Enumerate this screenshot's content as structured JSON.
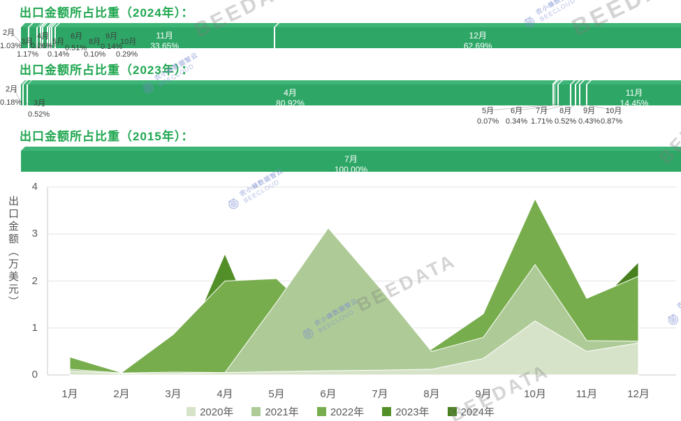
{
  "colors": {
    "bar_front": "#2ea766",
    "bar_top": "#3fb477",
    "title_green": "#1ea64f"
  },
  "watermark": {
    "beedata": "BEEDATA",
    "brand_cn": "农小蜂数据智云",
    "brand_en": "BEECLOUD"
  },
  "sections": [
    {
      "year": "2024",
      "title": "出口金额所占比重（2024年）：",
      "segments": [
        {
          "month": "2月",
          "pct": "1.03%",
          "value": 1.03,
          "inside": false
        },
        {
          "month": "3月",
          "pct": "1.17%",
          "value": 1.17,
          "inside": false
        },
        {
          "month": "4月",
          "pct": "0.26%",
          "value": 0.26,
          "inside": false
        },
        {
          "month": "5月",
          "pct": "0.14%",
          "value": 0.14,
          "inside": false
        },
        {
          "month": "6月",
          "pct": "0.51%",
          "value": 0.51,
          "inside": false
        },
        {
          "month": "8月",
          "pct": "0.10%",
          "value": 0.1,
          "inside": false
        },
        {
          "month": "9月",
          "pct": "0.14%",
          "value": 0.14,
          "inside": false
        },
        {
          "month": "10月",
          "pct": "0.29%",
          "value": 0.29,
          "inside": false
        },
        {
          "month": "11月",
          "pct": "33.65%",
          "value": 33.65,
          "inside": true
        },
        {
          "month": "12月",
          "pct": "62.69%",
          "value": 62.69,
          "inside": true
        }
      ]
    },
    {
      "year": "2023",
      "title": "出口金额所占比重（2023年）：",
      "segments": [
        {
          "month": "2月",
          "pct": "0.18%",
          "value": 0.18,
          "inside": false
        },
        {
          "month": "3月",
          "pct": "0.52%",
          "value": 0.52,
          "inside": false
        },
        {
          "month": "4月",
          "pct": "80.92%",
          "value": 80.92,
          "inside": true
        },
        {
          "month": "5月",
          "pct": "0.07%",
          "value": 0.07,
          "inside": false
        },
        {
          "month": "6月",
          "pct": "0.34%",
          "value": 0.34,
          "inside": false
        },
        {
          "month": "7月",
          "pct": "1.71%",
          "value": 1.71,
          "inside": false
        },
        {
          "month": "8月",
          "pct": "0.52%",
          "value": 0.52,
          "inside": false
        },
        {
          "month": "9月",
          "pct": "0.43%",
          "value": 0.43,
          "inside": false
        },
        {
          "month": "10月",
          "pct": "0.87%",
          "value": 0.87,
          "inside": false
        },
        {
          "month": "11月",
          "pct": "14.45%",
          "value": 14.45,
          "inside": true
        }
      ]
    },
    {
      "year": "2015",
      "title": "出口金额所占比重（2015年）：",
      "segments": [
        {
          "month": "7月",
          "pct": "100.00%",
          "value": 100,
          "inside": true
        }
      ]
    }
  ],
  "chart_data": {
    "type": "area",
    "title": "",
    "xlabel": "",
    "ylabel": "出口金额（万美元）",
    "categories": [
      "1月",
      "2月",
      "3月",
      "4月",
      "5月",
      "6月",
      "7月",
      "8月",
      "9月",
      "10月",
      "11月",
      "12月"
    ],
    "ylim": [
      0,
      4
    ],
    "yticks": [
      0,
      1,
      2,
      3,
      4
    ],
    "grid": true,
    "legend_position": "bottom",
    "series": [
      {
        "name": "2020年",
        "color": "#d7e3c9",
        "values": [
          0.08,
          0.03,
          0.03,
          0.05,
          0.07,
          0.09,
          0.1,
          0.12,
          0.35,
          1.15,
          0.5,
          0.68
        ]
      },
      {
        "name": "2021年",
        "color": "#aecb97",
        "values": [
          0.12,
          0.04,
          0.06,
          0.05,
          1.55,
          3.13,
          1.85,
          0.5,
          0.8,
          2.35,
          0.73,
          0.72
        ]
      },
      {
        "name": "2022年",
        "color": "#78ad4e",
        "values": [
          0.38,
          0.05,
          0.86,
          2.0,
          2.05,
          1.0,
          0.6,
          0.55,
          1.3,
          3.75,
          1.63,
          2.1
        ]
      },
      {
        "name": "2023年",
        "color": "#538f29",
        "values": [
          0.0,
          0.01,
          0.02,
          2.58,
          0.0,
          0.01,
          0.06,
          0.02,
          0.01,
          0.03,
          0.46,
          0.0
        ]
      },
      {
        "name": "2024年",
        "color": "#47801c",
        "values": [
          0.0,
          0.04,
          0.05,
          0.01,
          0.01,
          0.02,
          0.0,
          0.0,
          0.01,
          0.01,
          1.29,
          2.4
        ]
      }
    ]
  }
}
